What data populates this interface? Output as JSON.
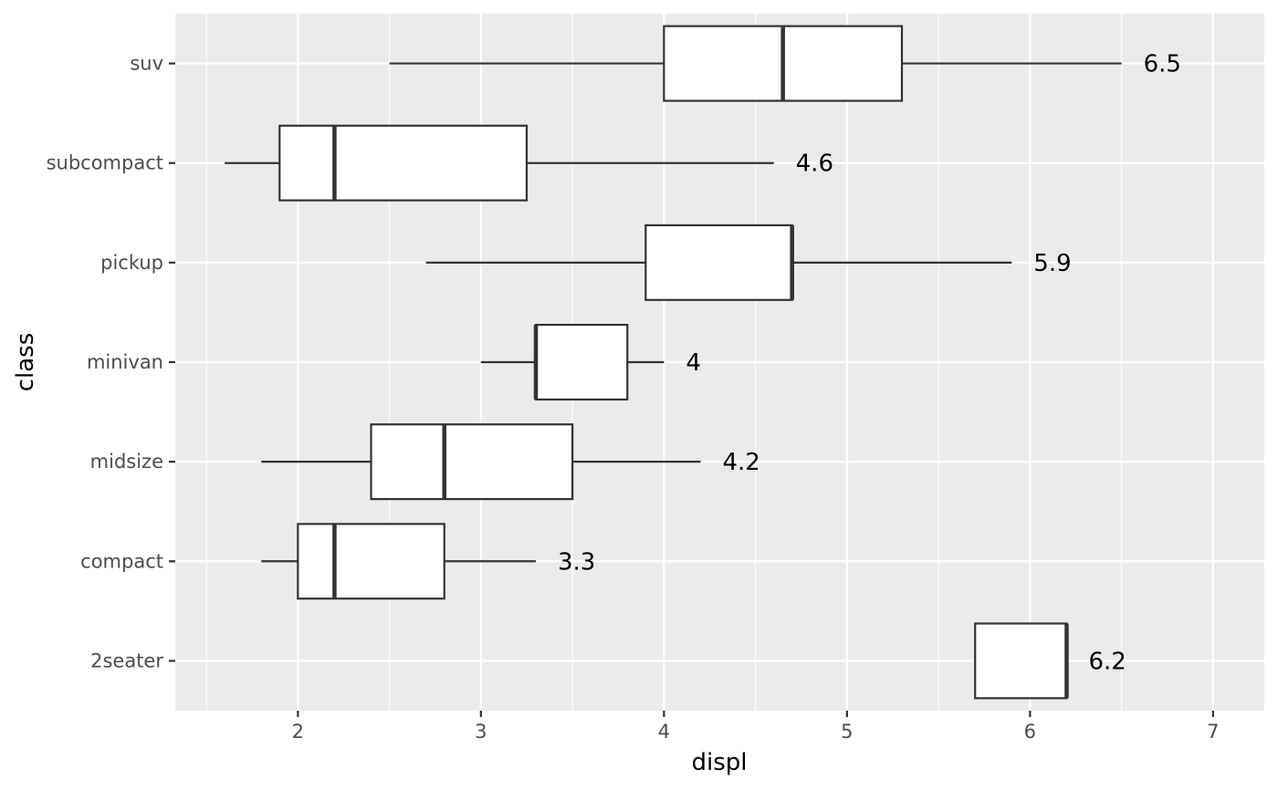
{
  "chart_data": {
    "type": "boxplot",
    "orientation": "horizontal",
    "xlabel": "displ",
    "ylabel": "class",
    "xlim": [
      1.33,
      7.28
    ],
    "x_ticks": [
      2,
      3,
      4,
      5,
      6,
      7
    ],
    "x_tick_labels": [
      "2",
      "3",
      "4",
      "5",
      "6",
      "7"
    ],
    "grid": true,
    "categories": [
      "2seater",
      "compact",
      "midsize",
      "minivan",
      "pickup",
      "subcompact",
      "suv"
    ],
    "boxes": [
      {
        "category": "2seater",
        "whisker_low": 5.7,
        "q1": 5.7,
        "median": 6.2,
        "q3": 6.2,
        "whisker_high": 6.2,
        "label": "6.2"
      },
      {
        "category": "compact",
        "whisker_low": 1.8,
        "q1": 2.0,
        "median": 2.2,
        "q3": 2.8,
        "whisker_high": 3.3,
        "label": "3.3"
      },
      {
        "category": "midsize",
        "whisker_low": 1.8,
        "q1": 2.4,
        "median": 2.8,
        "q3": 3.5,
        "whisker_high": 4.2,
        "label": "4.2"
      },
      {
        "category": "minivan",
        "whisker_low": 3.0,
        "q1": 3.3,
        "median": 3.3,
        "q3": 3.8,
        "whisker_high": 4.0,
        "label": "4"
      },
      {
        "category": "pickup",
        "whisker_low": 2.7,
        "q1": 3.9,
        "median": 4.7,
        "q3": 4.7,
        "whisker_high": 5.9,
        "label": "5.9"
      },
      {
        "category": "subcompact",
        "whisker_low": 1.6,
        "q1": 1.9,
        "median": 2.2,
        "q3": 3.25,
        "whisker_high": 4.6,
        "label": "4.6"
      },
      {
        "category": "suv",
        "whisker_low": 2.5,
        "q1": 4.0,
        "median": 4.65,
        "q3": 5.3,
        "whisker_high": 6.5,
        "label": "6.5"
      }
    ],
    "colors": {
      "panel_background": "#ebebeb",
      "grid_major": "#ffffff",
      "box_fill": "#ffffff",
      "box_stroke": "#333333",
      "tick_text": "#4d4d4d",
      "axis_ticks": "#333333"
    }
  }
}
